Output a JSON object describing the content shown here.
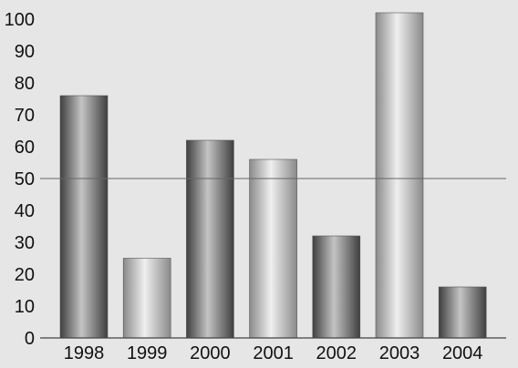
{
  "chart_data": {
    "type": "bar",
    "title": "",
    "xlabel": "",
    "ylabel": "",
    "categories": [
      "1998",
      "1999",
      "2000",
      "2001",
      "2002",
      "2003",
      "2004"
    ],
    "values": [
      76,
      25,
      62,
      56,
      32,
      103,
      16
    ],
    "ylim": [
      0,
      100
    ],
    "yticks": [
      0,
      10,
      20,
      30,
      40,
      50,
      60,
      70,
      80,
      90,
      100
    ],
    "reference_line": 50,
    "grid": false,
    "bar_shading": [
      "dark",
      "light",
      "dark",
      "light",
      "dark",
      "light",
      "dark"
    ],
    "colors": {
      "background": "#e6e6e6",
      "dark_bar_edge": "#3f3f3f",
      "dark_bar_center": "#c4c4c4",
      "light_bar_edge": "#8a8a8a",
      "light_bar_center": "#efefef",
      "axis": "#444444",
      "reference_line": "#666666"
    }
  }
}
